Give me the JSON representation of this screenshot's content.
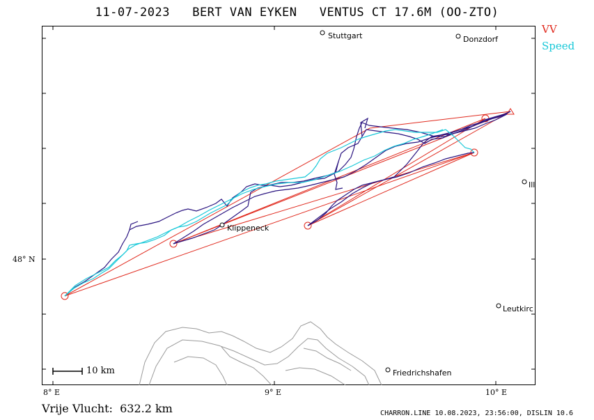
{
  "header": {
    "date": "11-07-2023",
    "pilot": "BERT VAN EYKEN",
    "glider": "VENTUS CT 17.6M (OO-ZTO)"
  },
  "legend": {
    "vv_label": "VV",
    "vv_color": "#e0281c",
    "speed_label": "Speed",
    "speed_color": "#18c8d8"
  },
  "map": {
    "track_color": "#2a1480",
    "terrain_color": "#9a9a9a",
    "places": [
      {
        "name": "Stuttgart",
        "icon": "city-circle-icon"
      },
      {
        "name": "Donzdorf",
        "icon": "city-circle-icon"
      },
      {
        "name": "Ill",
        "icon": "city-circle-icon"
      },
      {
        "name": "Klippeneck",
        "icon": "city-circle-icon"
      },
      {
        "name": "Leutkirc",
        "icon": "city-circle-icon"
      },
      {
        "name": "Friedrichshafen",
        "icon": "city-circle-icon"
      }
    ],
    "lat_label": "48° N",
    "lon_labels": [
      "8° E",
      "9° E",
      "10° E"
    ],
    "scale_label": "10 km"
  },
  "footer": {
    "distance_label": "Vrije Vlucht:",
    "distance_value": "632.2 km",
    "credits": "CHARRON.LINE 10.08.2023, 23:56:00, DISLIN 10.6"
  }
}
